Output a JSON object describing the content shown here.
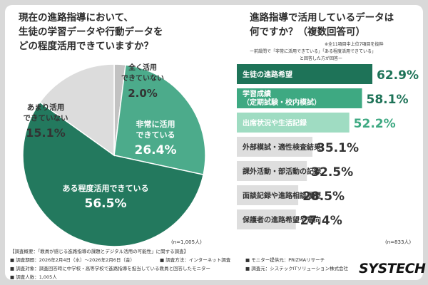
{
  "left": {
    "title": "現在の進路指導において、\n生徒の学習データや行動データを\nどの程度活用できていますか？",
    "n_label": "(n=1,005人)"
  },
  "right": {
    "title": "進路指導で活用しているデータは\n何ですか？（複数回答可）",
    "note1": "※全11項目中上位7項目を抜粋",
    "note2": "ー前設問で「非常に活用できている」「ある程度活用できている」",
    "note3": "と回答した方が回答ー",
    "n_label": "(n=833人)"
  },
  "chart_data": [
    {
      "type": "pie",
      "title": "現在の進路指導において、生徒の学習データや行動データをどの程度活用できていますか？",
      "slices": [
        {
          "label": "非常に活用できている",
          "label_lines": [
            "非常に活用",
            "できている"
          ],
          "value": 26.4,
          "display": "26.4%",
          "color": "#4cab8b"
        },
        {
          "label": "ある程度活用できている",
          "label_lines": [
            "ある程度活用できている"
          ],
          "value": 56.5,
          "display": "56.5%",
          "color": "#23795e"
        },
        {
          "label": "あまり活用できていない",
          "label_lines": [
            "あまり活用",
            "できていない"
          ],
          "value": 15.1,
          "display": "15.1%",
          "color": "#dcdcdc"
        },
        {
          "label": "全く活用できていない",
          "label_lines": [
            "全く活用",
            "できていない"
          ],
          "value": 2.0,
          "display": "2.0%",
          "color": "#c2c2c2"
        }
      ]
    },
    {
      "type": "bar",
      "orientation": "horizontal",
      "title": "進路指導で活用しているデータは何ですか？（複数回答可）",
      "categories": [
        [
          "生徒の進路希望"
        ],
        [
          "学習成績",
          "（定期試験・校内模試）"
        ],
        [
          "出席状況や生活記録"
        ],
        [
          "外部模試・適性検査結果"
        ],
        [
          "課外活動・部活動の記録"
        ],
        [
          "面談記録や進路相談履歴"
        ],
        [
          "保護者の進路希望や意向"
        ]
      ],
      "values": [
        62.9,
        58.1,
        52.2,
        35.1,
        32.5,
        28.5,
        27.4
      ],
      "display": [
        "62.9%",
        "58.1%",
        "52.2%",
        "35.1%",
        "32.5%",
        "28.5%",
        "27.4%"
      ],
      "colors": [
        "#1e7358",
        "#3ea982",
        "#9fdcc2",
        "#dedede",
        "#dedede",
        "#dedede",
        "#dedede"
      ],
      "label_colors": [
        "#ffffff",
        "#ffffff",
        "#ffffff",
        "#333333",
        "#333333",
        "#333333",
        "#333333"
      ],
      "value_colors": [
        "#1e7358",
        "#1e7358",
        "#3ea982",
        "#333333",
        "#333333",
        "#333333",
        "#333333"
      ]
    }
  ],
  "footer": {
    "line1": "【調査概要：「教員が感じる進路指導の課題とデジタル活用の可能性」に関する調査】",
    "period": "■ 調査期間：2026年2月4日（水）〜2026年2月6日（金）",
    "method": "■ 調査方法：インターネット調査",
    "target": "■ 調査対象：調査回答時に中学校・高等学校で進路指導を担当している教員と回答したモニター",
    "count": "■ 調査人数：1,005人",
    "monitor": "■ モニター提供元：PRIZMAリサーチ",
    "source": "■ 調査元：システックITソリューション株式会社"
  },
  "brand": {
    "text_main": "SYSTECH",
    "text_slash": ""
  }
}
